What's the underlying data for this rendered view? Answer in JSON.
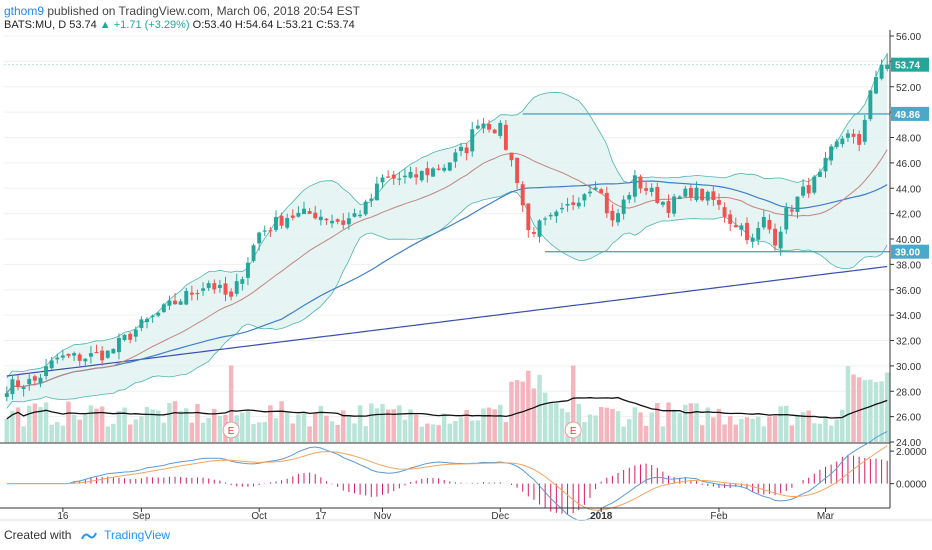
{
  "header": {
    "user": "gthom9",
    "published": "published on TradingView.com, March 06, 2018 20:54 EST",
    "symbol": "BATS:MU, D",
    "last": "53.74",
    "change": "▲ +1.71 (+3.29%)",
    "ohlc": "O:53.40 H:54.64 L:53.21 C:53.74"
  },
  "footer": {
    "created_with": "Created with",
    "brand": "TradingView"
  },
  "colors": {
    "up": "#26a69a",
    "down": "#ef5350",
    "bb_fill": "#e0f2f1",
    "bb_line": "#4db6ac",
    "ma50": "#3f7fc8",
    "ma200": "#3a4fa8",
    "ma20": "#c2847f",
    "hline": "#4aa8c8",
    "vol_up": "#b9e4d8",
    "vol_down": "#f5b5bd",
    "macd": "#5b9bd5",
    "signal": "#f4a460",
    "hist": "#d81b60"
  },
  "chart_data": {
    "type": "candlestick",
    "y_axis": {
      "min": 24.0,
      "max": 56.0,
      "ticks": [
        "56.00",
        "54.00",
        "52.00",
        "50.00",
        "48.00",
        "46.00",
        "44.00",
        "42.00",
        "40.00",
        "38.00",
        "36.00",
        "34.00",
        "32.00",
        "30.00",
        "28.00",
        "26.00",
        "24.00"
      ]
    },
    "price_labels": [
      {
        "value": 53.74,
        "text": "53.74",
        "color": "#26a69a"
      },
      {
        "value": 49.86,
        "text": "49.86",
        "color": "#4aa8c8"
      },
      {
        "value": 39.0,
        "text": "39.00",
        "color": "#4aa8c8"
      }
    ],
    "horizontal_lines": [
      {
        "value": 49.86,
        "from_index": 92
      },
      {
        "value": 39.0,
        "from_index": 96
      }
    ],
    "x_labels": [
      {
        "text": "16",
        "index": 10
      },
      {
        "text": "Sep",
        "index": 24
      },
      {
        "text": "Oct",
        "index": 45
      },
      {
        "text": "17",
        "index": 56
      },
      {
        "text": "Nov",
        "index": 67
      },
      {
        "text": "Dec",
        "index": 88
      },
      {
        "text": "2018",
        "index": 106
      },
      {
        "text": "Feb",
        "index": 127
      },
      {
        "text": "Mar",
        "index": 146
      }
    ],
    "earnings_markers": [
      {
        "text": "E",
        "index": 40
      },
      {
        "text": "E",
        "index": 101
      }
    ],
    "close_path": [
      [
        0,
        28.4
      ],
      [
        5,
        28.8
      ],
      [
        9,
        30.6
      ],
      [
        14,
        30.7
      ],
      [
        18,
        31.0
      ],
      [
        24,
        33.2
      ],
      [
        30,
        35.0
      ],
      [
        36,
        36.6
      ],
      [
        40,
        35.2
      ],
      [
        45,
        40.5
      ],
      [
        50,
        41.8
      ],
      [
        55,
        42.0
      ],
      [
        60,
        41.3
      ],
      [
        64,
        42.5
      ],
      [
        67,
        44.7
      ],
      [
        72,
        44.8
      ],
      [
        78,
        45.8
      ],
      [
        82,
        47.2
      ],
      [
        84,
        49.4
      ],
      [
        88,
        48.6
      ],
      [
        91,
        44.8
      ],
      [
        93,
        40.6
      ],
      [
        96,
        41.2
      ],
      [
        99,
        42.0
      ],
      [
        102,
        43.4
      ],
      [
        105,
        44.6
      ],
      [
        108,
        41.2
      ],
      [
        112,
        44.6
      ],
      [
        115,
        43.6
      ],
      [
        118,
        42.6
      ],
      [
        122,
        43.8
      ],
      [
        126,
        43.0
      ],
      [
        129,
        41.5
      ],
      [
        131,
        41.0
      ],
      [
        133,
        39.8
      ],
      [
        135,
        41.5
      ],
      [
        137,
        40.0
      ],
      [
        139,
        42.0
      ],
      [
        142,
        43.7
      ],
      [
        145,
        44.9
      ],
      [
        147,
        46.8
      ],
      [
        150,
        48.6
      ],
      [
        152,
        47.0
      ],
      [
        154,
        52.0
      ],
      [
        156,
        53.74
      ]
    ],
    "volume_axis": {
      "min": 0,
      "max": 100
    },
    "macd_axis": {
      "min": -1.5,
      "max": 2.5,
      "ticks": [
        "2.0000",
        "0.0000"
      ]
    }
  }
}
